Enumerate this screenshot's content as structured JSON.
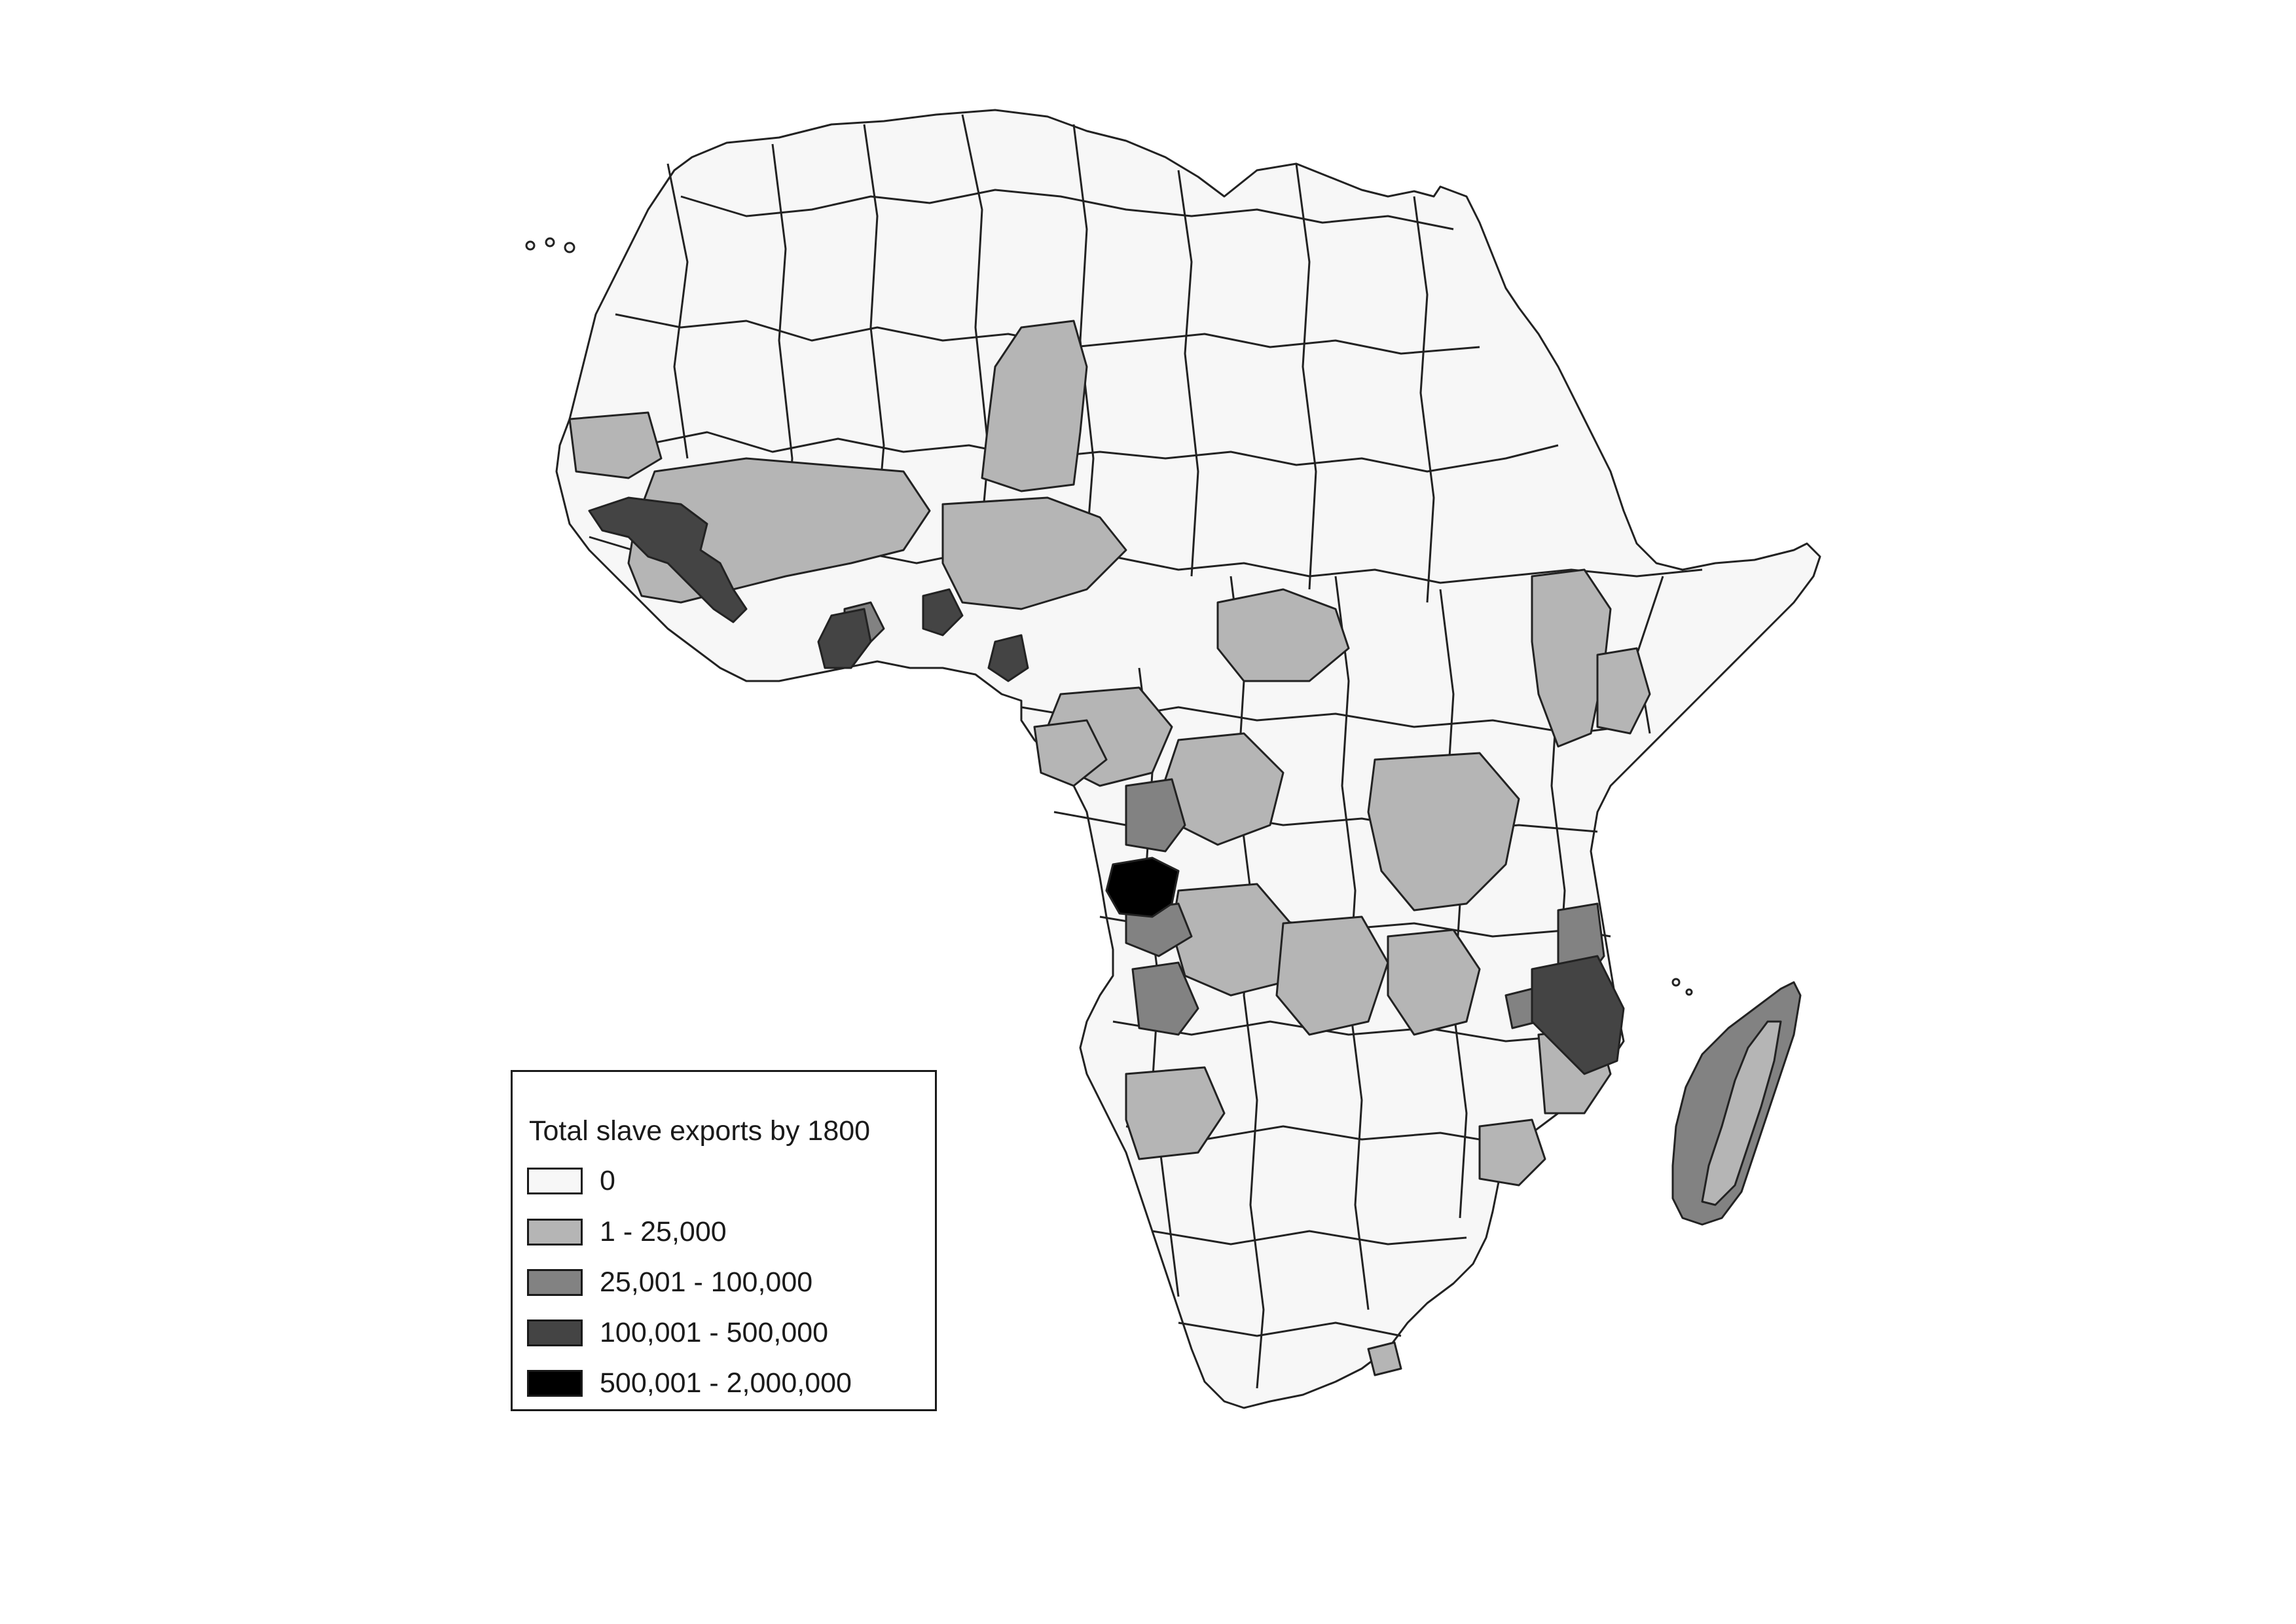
{
  "map": {
    "subject": "Africa",
    "fill_colors": {
      "c0": "#f7f7f7",
      "c1": "#b5b5b5",
      "c2": "#828282",
      "c3": "#444444",
      "c4": "#000000",
      "stroke": "#222222"
    }
  },
  "legend": {
    "title": "Total slave exports by 1800",
    "items": [
      {
        "label": "0",
        "color": "#f7f7f7"
      },
      {
        "label": "1 - 25,000",
        "color": "#b5b5b5"
      },
      {
        "label": "25,001 - 100,000",
        "color": "#828282"
      },
      {
        "label": "100,001 - 500,000",
        "color": "#444444"
      },
      {
        "label": "500,001 - 2,000,000",
        "color": "#000000"
      }
    ]
  }
}
